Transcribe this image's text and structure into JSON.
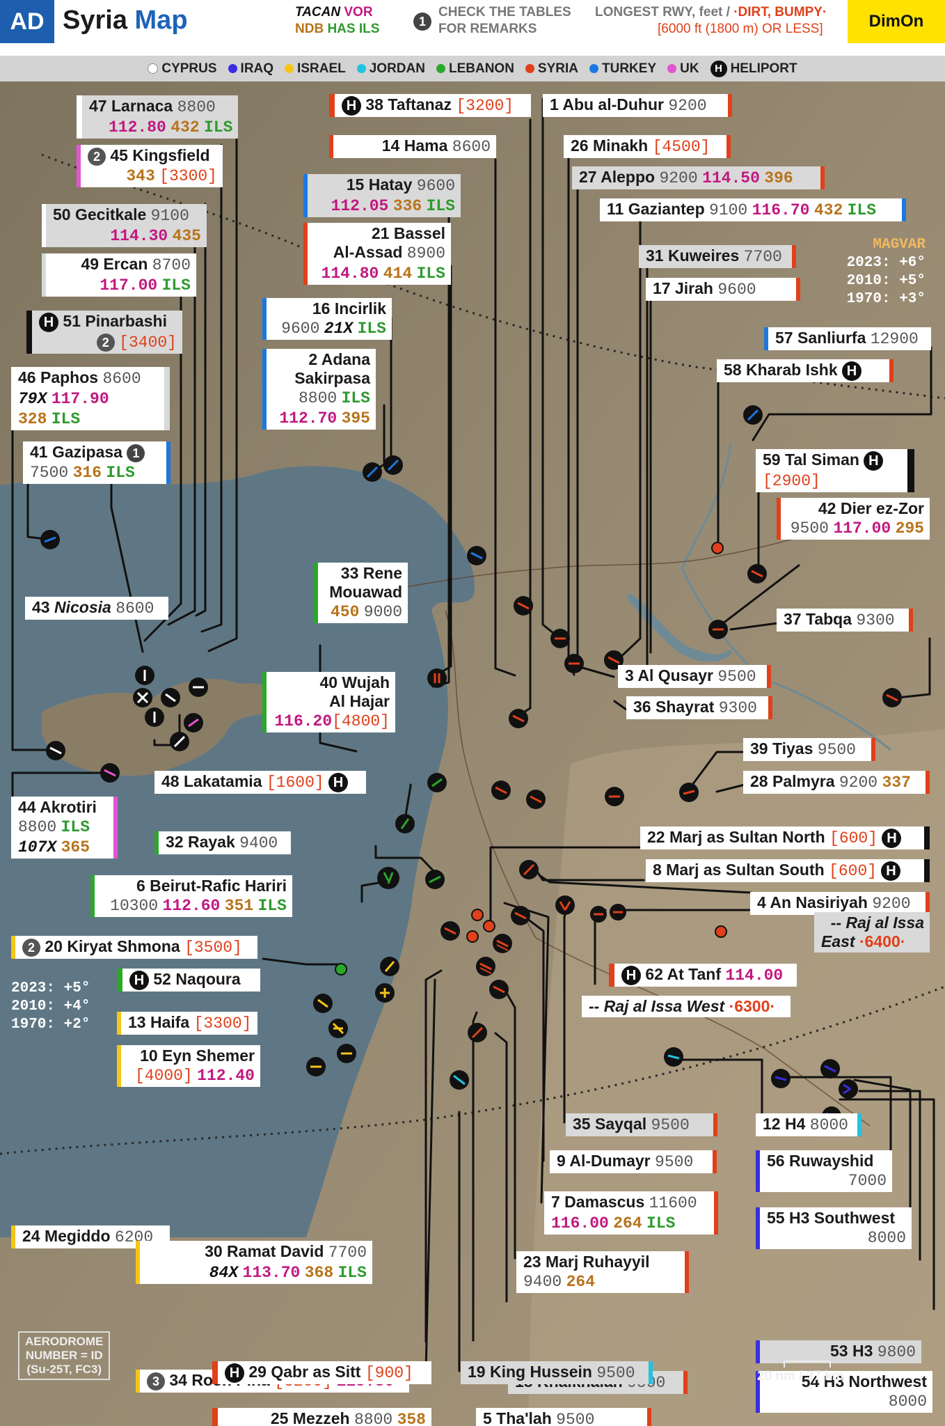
{
  "header": {
    "badge": "AD",
    "title_a": "Syria",
    "title_b": "Map",
    "legend_line1_a": "TACAN",
    "legend_line1_b": "VOR",
    "legend_line2_a": "NDB",
    "legend_line2_b": "HAS ILS",
    "remark_num": "1",
    "remark_1": "CHECK THE TABLES",
    "remark_2": "FOR REMARKS",
    "rwy_1a": "LONGEST RWY, feet /",
    "rwy_1b": "·DIRT, BUMPY·",
    "rwy_2": "[6000 ft (1800 m) OR LESS]",
    "brand": "DimOn"
  },
  "legend": [
    {
      "label": "CYPRUS",
      "color": "#ffffff"
    },
    {
      "label": "IRAQ",
      "color": "#3b2de0"
    },
    {
      "label": "ISRAEL",
      "color": "#f5c518"
    },
    {
      "label": "JORDAN",
      "color": "#22c3e0"
    },
    {
      "label": "LEBANON",
      "color": "#2aa82a"
    },
    {
      "label": "SYRIA",
      "color": "#e0401a"
    },
    {
      "label": "TURKEY",
      "color": "#1c78e0"
    },
    {
      "label": "UK",
      "color": "#e055d0"
    }
  ],
  "legend_heliport": "HELIPORT",
  "magvar": {
    "title": "MAGVAR",
    "l1": "2023: +6°",
    "l2": "2010: +5°",
    "l3": "1970: +3°"
  },
  "magvar_west": {
    "l1": "2023: +5°",
    "l2": "2010: +4°",
    "l3": "1970: +2°"
  },
  "aerodrome_note": {
    "l1": "AERODROME",
    "l2": "NUMBER = ID",
    "l3": "(Su-25T, FC3)"
  },
  "scale": "20 nm / 37 km",
  "airports": {
    "a47": {
      "name": "47 Larnaca",
      "rwy": "8800",
      "vor": "112.80",
      "ndb": "432",
      "ils": "ILS"
    },
    "a45": {
      "rmk": "2",
      "name": "45 Kingsfield",
      "ndb": "343",
      "rwy": "[3300]"
    },
    "a50": {
      "name": "50 Gecitkale",
      "rwy": "9100",
      "vor": "114.30",
      "ndb": "435"
    },
    "a49": {
      "name": "49 Ercan",
      "rwy": "8700",
      "vor": "117.00",
      "ils": "ILS"
    },
    "a51": {
      "name": "51 Pinarbashi",
      "rmk": "2",
      "rwy": "[3400]"
    },
    "a46": {
      "name": "46 Paphos",
      "rwy": "8600",
      "tacan": "79X",
      "vor": "117.90",
      "ndb": "328",
      "ils": "ILS"
    },
    "a41": {
      "name": "41 Gazipasa",
      "rmk": "1",
      "rwy": "7500",
      "ndb": "316",
      "ils": "ILS"
    },
    "a43": {
      "name": "43",
      "name2": "Nicosia",
      "rwy": "8600"
    },
    "a44": {
      "name": "44 Akrotiri",
      "rwy": "8800",
      "ils": "ILS",
      "tacan": "107X",
      "ndb": "365"
    },
    "a48": {
      "name": "48 Lakatamia",
      "rwy": "[1600]"
    },
    "a38": {
      "name": "38 Taftanaz",
      "rwy": "[3200]"
    },
    "a14": {
      "name": "14 Hama",
      "rwy": "8600"
    },
    "a15": {
      "name": "15 Hatay",
      "rwy": "9600",
      "vor": "112.05",
      "ndb": "336",
      "ils": "ILS"
    },
    "a21": {
      "name": "21 Bassel",
      "name2": "Al-Assad",
      "rwy": "8900",
      "vor": "114.80",
      "ndb": "414",
      "ils": "ILS"
    },
    "a16": {
      "name": "16 Incirlik",
      "rwy": "9600",
      "tacan": "21X",
      "ils": "ILS"
    },
    "a2": {
      "name": "2 Adana",
      "name2": "Sakirpasa",
      "rwy": "8800",
      "ils": "ILS",
      "vor": "112.70",
      "ndb": "395"
    },
    "a33": {
      "name": "33 Rene",
      "name2": "Mouawad",
      "ndb": "450",
      "rwy": "9000"
    },
    "a40": {
      "name": "40 Wujah",
      "name2": "Al Hajar",
      "vor": "116.20",
      "rwy": "[4800]"
    },
    "a32": {
      "name": "32 Rayak",
      "rwy": "9400"
    },
    "a6": {
      "name": "6 Beirut-Rafic Hariri",
      "rwy": "10300",
      "vor": "112.60",
      "ndb": "351",
      "ils": "ILS"
    },
    "a20": {
      "rmk": "2",
      "name": "20 Kiryat Shmona",
      "rwy": "[3500]"
    },
    "a52": {
      "name": "52 Naqoura"
    },
    "a13": {
      "name": "13 Haifa",
      "rwy": "[3300]"
    },
    "a10": {
      "name": "10 Eyn Shemer",
      "rwy": "[4000]",
      "vor": "112.40"
    },
    "a24": {
      "name": "24 Megiddo",
      "rwy": "6200"
    },
    "a30": {
      "name": "30 Ramat David",
      "rwy": "7700",
      "tacan": "84X",
      "vor": "113.70",
      "ndb": "368",
      "ils": "ILS"
    },
    "a34": {
      "rmk": "3",
      "name": "34 Rosh Pina",
      "rwy": "[3200]",
      "vor": "115.30"
    },
    "a25": {
      "name": "25 Mezzeh",
      "rwy": "8800",
      "ndb": "358"
    },
    "a29": {
      "name": "29 Qabr as Sitt",
      "rwy": "[900]"
    },
    "a1": {
      "name": "1 Abu al-Duhur",
      "rwy": "9200"
    },
    "a26": {
      "name": "26 Minakh",
      "rwy": "[4500]"
    },
    "a27": {
      "name": "27 Aleppo",
      "rwy": "9200",
      "vor": "114.50",
      "ndb": "396"
    },
    "a11": {
      "name": "11 Gaziantep",
      "rwy": "9100",
      "vor": "116.70",
      "ndb": "432",
      "ils": "ILS"
    },
    "a31": {
      "name": "31 Kuweires",
      "rwy": "7700"
    },
    "a17": {
      "name": "17 Jirah",
      "rwy": "9600"
    },
    "a57": {
      "name": "57 Sanliurfa",
      "rwy": "12900"
    },
    "a58": {
      "name": "58 Kharab Ishk"
    },
    "a59": {
      "name": "59 Tal Siman",
      "rwy": "[2900]"
    },
    "a42": {
      "name": "42 Dier ez-Zor",
      "rwy": "9500",
      "vor": "117.00",
      "ndb": "295"
    },
    "a37": {
      "name": "37 Tabqa",
      "rwy": "9300"
    },
    "a3": {
      "name": "3 Al Qusayr",
      "rwy": "9500"
    },
    "a36": {
      "name": "36 Shayrat",
      "rwy": "9300"
    },
    "a39": {
      "name": "39 Tiyas",
      "rwy": "9500"
    },
    "a28": {
      "name": "28 Palmyra",
      "rwy": "9200",
      "ndb": "337"
    },
    "a22": {
      "name": "22 Marj as Sultan North",
      "rwy": "[600]"
    },
    "a8": {
      "name": "8 Marj as Sultan South",
      "rwy": "[600]"
    },
    "a4": {
      "name": "4 An Nasiriyah",
      "rwy": "9200"
    },
    "a60": {
      "name": "-- Raj al Issa",
      "name2": "East",
      "rwy": "·6400·"
    },
    "a62": {
      "name": "62 At Tanf",
      "vor": "114.00"
    },
    "a61": {
      "name": "-- Raj al Issa West",
      "rwy": "·6300·"
    },
    "a35": {
      "name": "35 Sayqal",
      "rwy": "9500"
    },
    "a12": {
      "name": "12 H4",
      "rwy": "8000"
    },
    "a9": {
      "name": "9 Al-Dumayr",
      "rwy": "9500"
    },
    "a56": {
      "name": "56 Ruwayshid",
      "rwy": "7000"
    },
    "a7": {
      "name": "7 Damascus",
      "rwy": "11600",
      "vor": "116.00",
      "ndb": "264",
      "ils": "ILS"
    },
    "a55": {
      "name": "55 H3 Southwest",
      "rwy": "8000"
    },
    "a23": {
      "name": "23 Marj Ruhayyil",
      "rwy": "9400",
      "ndb": "264"
    },
    "a53": {
      "name": "53 H3",
      "rwy": "9800"
    },
    "a18": {
      "name": "18 Khalkhalah",
      "rwy": "9500"
    },
    "a54": {
      "name": "54 H3 Northwest",
      "rwy": "8000"
    },
    "a5": {
      "name": "5 Tha'lah",
      "rwy": "9500"
    },
    "a19": {
      "name": "19 King Hussein",
      "rwy": "9500"
    }
  },
  "colors": {
    "cyprus": "#ffffff",
    "iraq": "#3b2de0",
    "israel": "#f5c518",
    "jordan": "#22c3e0",
    "lebanon": "#2aa82a",
    "syria": "#e0401a",
    "turkey": "#1c78e0",
    "uk": "#e055d0",
    "sea": "#5f7784",
    "land": "#8f8370"
  }
}
